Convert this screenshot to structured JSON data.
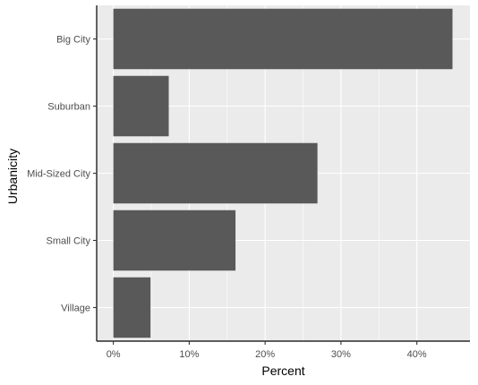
{
  "chart_data": {
    "type": "bar",
    "orientation": "horizontal",
    "categories": [
      "Big City",
      "Suburban",
      "Mid-Sized City",
      "Small City",
      "Village"
    ],
    "values": [
      44.7,
      7.3,
      26.9,
      16.1,
      4.9
    ],
    "xlabel": "Percent",
    "ylabel": "Urbanicity",
    "xlim": [
      -2.2,
      47.0
    ],
    "xticks": [
      0,
      10,
      20,
      30,
      40
    ],
    "xtick_labels": [
      "0%",
      "10%",
      "20%",
      "30%",
      "40%"
    ],
    "grid": true,
    "colors": {
      "bar": "#595959",
      "panel": "#ebebeb",
      "grid": "#ffffff",
      "axis_line": "#000000"
    }
  }
}
